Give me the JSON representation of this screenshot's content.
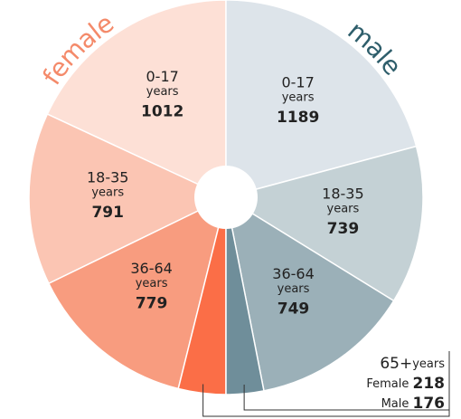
{
  "chart_data": {
    "type": "pie",
    "unit": "years",
    "series": [
      {
        "name": "female",
        "color": "#f48a6a",
        "categories": [
          "0-17",
          "18-35",
          "36-64",
          "65+"
        ],
        "values": [
          1012,
          791,
          779,
          218
        ],
        "colors": [
          "#fde0d6",
          "#fbc5b3",
          "#f89c7f",
          "#fb6e47"
        ]
      },
      {
        "name": "male",
        "color": "#2e5e6b",
        "categories": [
          "0-17",
          "18-35",
          "36-64",
          "65+"
        ],
        "values": [
          1189,
          739,
          749,
          176
        ],
        "colors": [
          "#dde4ea",
          "#c4d1d5",
          "#9bb0b8",
          "#6f8e9a"
        ]
      }
    ],
    "annotation": {
      "labels": [
        "Female",
        "Male"
      ]
    }
  }
}
